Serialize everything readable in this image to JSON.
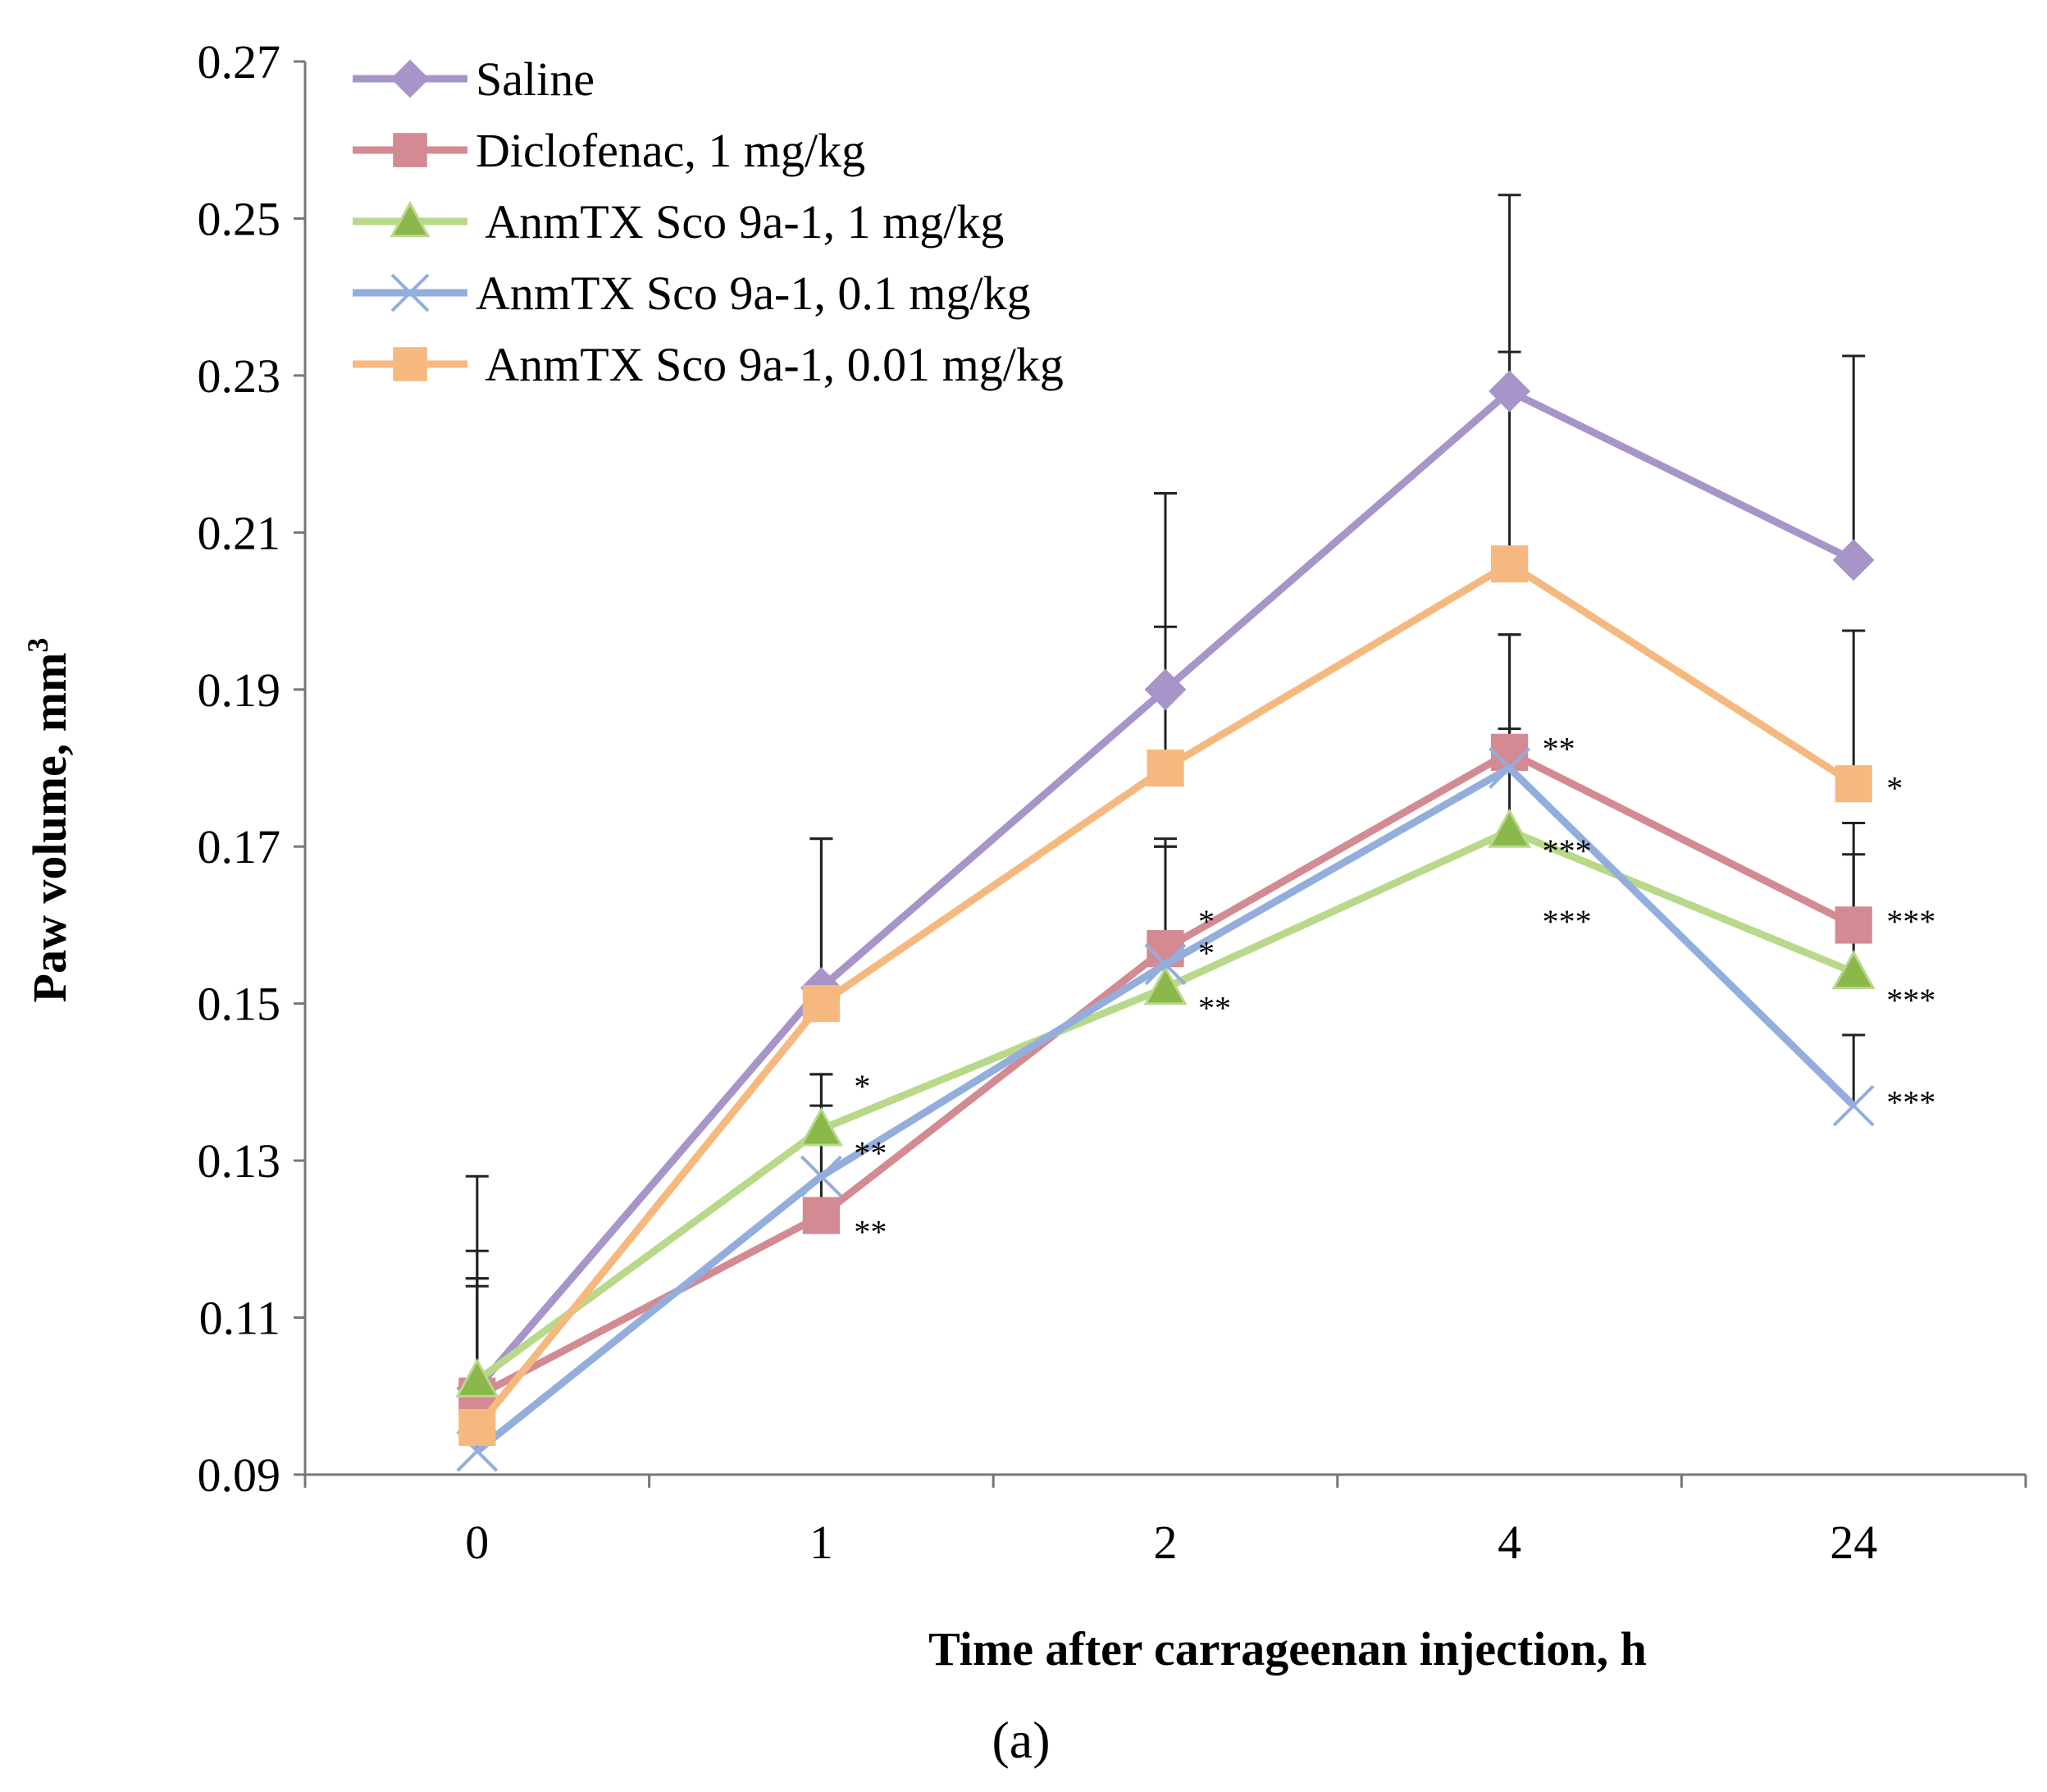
{
  "chart_data": {
    "type": "line",
    "categories": [
      "0",
      "1",
      "2",
      "4",
      "24"
    ],
    "xlabel": "Time after carrageenan injection, h",
    "ylabel": "Paw volume,  mm",
    "ylabel_superscript": "3",
    "ylim": [
      0.09,
      0.27
    ],
    "yticks": [
      "0.09",
      "0.11",
      "0.13",
      "0.15",
      "0.17",
      "0.19",
      "0.21",
      "0.23",
      "0.25",
      "0.27"
    ],
    "panel_label": "(a)",
    "series": [
      {
        "name": "Saline",
        "color": "#a794c8",
        "marker": "diamond",
        "values": [
          0.101,
          0.152,
          0.19,
          0.228,
          0.2065
        ],
        "errors": [
          0.027,
          0.019,
          0.025,
          0.025,
          0.026
        ]
      },
      {
        "name": "Diclofenac, 1 mg/kg",
        "color": "#d38a92",
        "marker": "square",
        "values": [
          0.1,
          0.123,
          0.157,
          0.182,
          0.16
        ],
        "errors": [
          0.015,
          0.018,
          0.013,
          0.015,
          0.013
        ]
      },
      {
        "name": " AnmTX Sco 9a-1, 1 mg/kg",
        "color": "#b8d88a",
        "marker": "triangle",
        "values": [
          0.102,
          0.134,
          0.152,
          0.172,
          0.154
        ],
        "errors": [
          0.0165,
          0.003,
          0.019,
          0.013,
          0.015
        ]
      },
      {
        "name": "AnmTX Sco 9a-1, 0.1 mg/kg",
        "color": "#93aedc",
        "marker": "x",
        "values": [
          0.093,
          0.128,
          0.155,
          0.18,
          0.137
        ],
        "errors": [
          0.022,
          0.013,
          0.015,
          0.017,
          0.009
        ]
      },
      {
        "name": " AnmTX Sco 9a-1, 0.01 mg/kg",
        "color": "#f5b97f",
        "marker": "square",
        "values": [
          0.096,
          0.15,
          0.18,
          0.206,
          0.178
        ],
        "errors": [
          0.018,
          0.021,
          0.018,
          0.027,
          0.0195
        ]
      }
    ],
    "annotations": [
      {
        "text": "*",
        "x": "1",
        "y": 0.1395
      },
      {
        "text": "**",
        "x": "1",
        "y": 0.131
      },
      {
        "text": "**",
        "x": "1",
        "y": 0.121
      },
      {
        "text": "*",
        "x": "2",
        "y": 0.1605
      },
      {
        "text": "*",
        "x": "2",
        "y": 0.1565
      },
      {
        "text": "**",
        "x": "2",
        "y": 0.1495
      },
      {
        "text": "**",
        "x": "4",
        "y": 0.1825
      },
      {
        "text": "***",
        "x": "4",
        "y": 0.1695
      },
      {
        "text": "***",
        "x": "4",
        "y": 0.1605
      },
      {
        "text": "*",
        "x": "24",
        "y": 0.1775
      },
      {
        "text": "***",
        "x": "24",
        "y": 0.1605
      },
      {
        "text": "***",
        "x": "24",
        "y": 0.1505
      },
      {
        "text": "***",
        "x": "24",
        "y": 0.1375
      }
    ]
  }
}
